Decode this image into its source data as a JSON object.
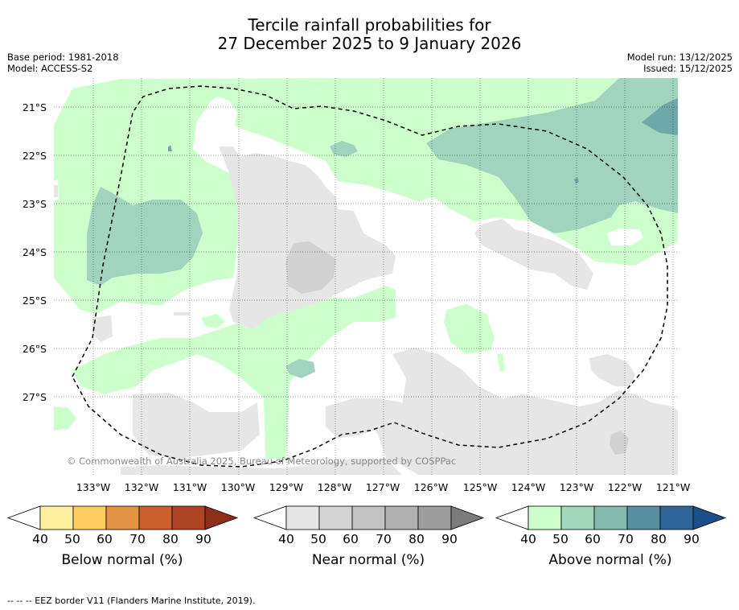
{
  "title_line1": "Tercile rainfall probabilities for",
  "title_line2": "27 December 2025 to 9 January 2026",
  "base_period": "Base period: 1981-2018",
  "model": "Model: ACCESS-S2",
  "model_run": "Model run: 13/12/2025",
  "issued": "Issued: 15/12/2025",
  "lat_labels": [
    "21°S",
    "22°S",
    "23°S",
    "24°S",
    "25°S",
    "26°S",
    "27°S"
  ],
  "lon_labels": [
    "133°W",
    "132°W",
    "131°W",
    "130°W",
    "129°W",
    "128°W",
    "127°W",
    "126°W",
    "125°W",
    "124°W",
    "123°W",
    "122°W",
    "121°W"
  ],
  "copyright": "© Commonwealth of Australia 2025, Bureau of Meteorology, supported by COSPPac",
  "legend": {
    "ticks": [
      "40",
      "50",
      "60",
      "70",
      "80",
      "90"
    ],
    "below": {
      "label": "Below normal (%)",
      "colors": [
        "#ffffff",
        "#fff0a0",
        "#fdcb60",
        "#e29444",
        "#c9602e",
        "#ad4423",
        "#8f2e18"
      ]
    },
    "near": {
      "label": "Near normal (%)",
      "colors": [
        "#ffffff",
        "#e6e6e6",
        "#d4d4d4",
        "#c2c2c2",
        "#b0b0b0",
        "#9e9e9e",
        "#7c7c7c"
      ]
    },
    "above": {
      "label": "Above normal (%)",
      "colors": [
        "#ffffff",
        "#ccffcc",
        "#a1d8bb",
        "#84b9ad",
        "#5690a0",
        "#2f6598",
        "#1a4f8a"
      ]
    }
  },
  "colors": {
    "green": "#ccffcc",
    "teal": "#a0d4be",
    "tealdark": "#6fa8a8",
    "grey": "#e6e6e6",
    "greydark": "#d2d2d2"
  },
  "footnote": "--  --  -- EEZ border V11 (Flanders Marine Institute, 2019)."
}
